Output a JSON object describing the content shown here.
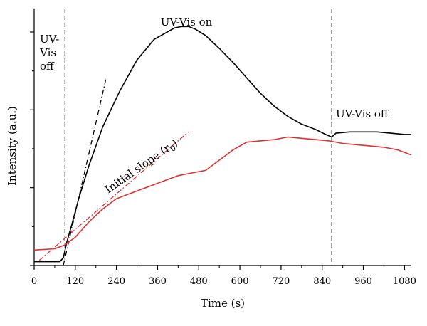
{
  "chart_data": {
    "type": "line",
    "xlabel": "Time (s)",
    "ylabel": "Intensity (a.u.)",
    "xlim": [
      0,
      1100
    ],
    "ylim": [
      0,
      1
    ],
    "x_ticks": [
      0,
      120,
      240,
      360,
      480,
      600,
      720,
      840,
      960,
      1080
    ],
    "y_tick_count": 7,
    "y_tick_labels_shown": false,
    "legend": "none",
    "grid": false,
    "series": [
      {
        "color": "#000000",
        "points": [
          [
            0,
            0.015
          ],
          [
            50,
            0.015
          ],
          [
            75,
            0.015
          ],
          [
            85,
            0.03
          ],
          [
            95,
            0.09
          ],
          [
            110,
            0.16
          ],
          [
            130,
            0.26
          ],
          [
            160,
            0.39
          ],
          [
            200,
            0.54
          ],
          [
            250,
            0.68
          ],
          [
            300,
            0.8
          ],
          [
            350,
            0.88
          ],
          [
            390,
            0.91
          ],
          [
            410,
            0.925
          ],
          [
            430,
            0.93
          ],
          [
            450,
            0.93
          ],
          [
            470,
            0.92
          ],
          [
            500,
            0.895
          ],
          [
            540,
            0.845
          ],
          [
            580,
            0.79
          ],
          [
            620,
            0.73
          ],
          [
            660,
            0.67
          ],
          [
            700,
            0.62
          ],
          [
            740,
            0.58
          ],
          [
            780,
            0.55
          ],
          [
            820,
            0.53
          ],
          [
            850,
            0.51
          ],
          [
            868,
            0.5
          ],
          [
            880,
            0.515
          ],
          [
            920,
            0.52
          ],
          [
            960,
            0.52
          ],
          [
            1000,
            0.52
          ],
          [
            1040,
            0.515
          ],
          [
            1080,
            0.51
          ],
          [
            1100,
            0.51
          ]
        ]
      },
      {
        "color": "#e03030",
        "points": [
          [
            0,
            0.06
          ],
          [
            60,
            0.065
          ],
          [
            90,
            0.08
          ],
          [
            120,
            0.11
          ],
          [
            160,
            0.17
          ],
          [
            200,
            0.22
          ],
          [
            240,
            0.26
          ],
          [
            300,
            0.29
          ],
          [
            340,
            0.31
          ],
          [
            380,
            0.33
          ],
          [
            420,
            0.35
          ],
          [
            460,
            0.36
          ],
          [
            500,
            0.37
          ],
          [
            540,
            0.41
          ],
          [
            580,
            0.45
          ],
          [
            620,
            0.48
          ],
          [
            660,
            0.485
          ],
          [
            700,
            0.49
          ],
          [
            740,
            0.5
          ],
          [
            780,
            0.495
          ],
          [
            820,
            0.49
          ],
          [
            860,
            0.485
          ],
          [
            900,
            0.475
          ],
          [
            940,
            0.47
          ],
          [
            980,
            0.465
          ],
          [
            1020,
            0.46
          ],
          [
            1060,
            0.45
          ],
          [
            1100,
            0.43
          ]
        ]
      }
    ],
    "reference_lines": [
      {
        "type": "vertical",
        "style": "dashed",
        "color": "#222222",
        "x": 90
      },
      {
        "type": "vertical",
        "style": "dashed",
        "color": "#222222",
        "x": 868
      },
      {
        "type": "tangent",
        "style": "dashdot",
        "color": "#000000",
        "from": [
          85,
          0.0
        ],
        "to": [
          210,
          0.73
        ]
      },
      {
        "type": "tangent",
        "style": "dashdot",
        "color": "#e03030",
        "from": [
          15,
          0.02
        ],
        "to": [
          450,
          0.52
        ]
      }
    ],
    "annotations": [
      {
        "text": "UV-Vis on"
      },
      {
        "text": "UV-Vis off"
      }
    ],
    "left_region_label": [
      "UV-",
      "Vis",
      "off"
    ],
    "slope_label": {
      "text": "Initial slope (r",
      "subscript": "0",
      "suffix": ")",
      "rotation_deg": -35
    }
  }
}
